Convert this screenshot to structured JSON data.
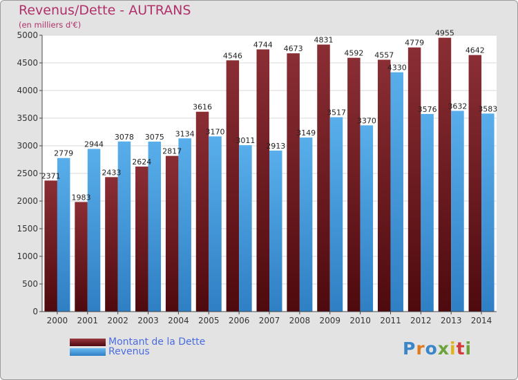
{
  "title": "Revenus/Dette - AUTRANS",
  "subtitle": "(en milliers d'€)",
  "colors": {
    "title": "#b0306a",
    "debt": "#7a2026",
    "revenue": "#4aa0e2",
    "legend_text": "#4a6ce0",
    "background": "#e3e3e3"
  },
  "legend": {
    "debt_label": "Montant de la Dette",
    "revenue_label": "Revenus"
  },
  "logo": {
    "text": "Proxiti",
    "letter_colors": [
      "#3a86c8",
      "#e07a1f",
      "#3a86c8",
      "#6aa33a",
      "#e2b21a",
      "#d23a3a",
      "#6aa33a"
    ]
  },
  "chart_data": {
    "type": "bar",
    "categories": [
      "2000",
      "2001",
      "2002",
      "2003",
      "2004",
      "2005",
      "2006",
      "2007",
      "2008",
      "2009",
      "2010",
      "2011",
      "2012",
      "2013",
      "2014"
    ],
    "series": [
      {
        "name": "Montant de la Dette",
        "values": [
          2371,
          1983,
          2433,
          2624,
          2817,
          3616,
          4546,
          4744,
          4673,
          4831,
          4592,
          4557,
          4779,
          4955,
          4642
        ]
      },
      {
        "name": "Revenus",
        "values": [
          2779,
          2944,
          3078,
          3075,
          3134,
          3170,
          3011,
          2913,
          3149,
          3517,
          3370,
          4330,
          3576,
          3632,
          3583
        ]
      }
    ],
    "ylim": [
      0,
      5000
    ],
    "yticks": [
      0,
      500,
      1000,
      1500,
      2000,
      2500,
      3000,
      3500,
      4000,
      4500,
      5000
    ],
    "grid": true,
    "legend_position": "bottom-left"
  }
}
